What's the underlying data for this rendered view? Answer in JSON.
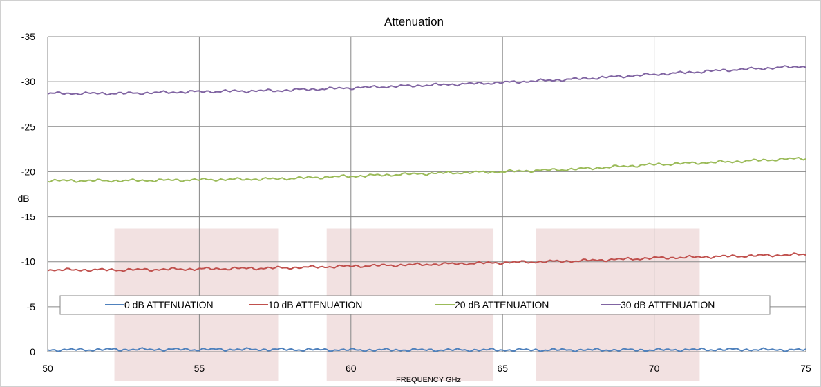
{
  "chart_data": {
    "type": "line",
    "title": "Attenuation",
    "xlabel": "FREQUENCY GHz",
    "ylabel": "dB",
    "xlim": [
      50,
      75
    ],
    "ylim": [
      0,
      -35
    ],
    "y_inverted": true,
    "x_ticks": [
      50,
      55,
      60,
      65,
      70,
      75
    ],
    "y_ticks": [
      0,
      -5,
      -10,
      -15,
      -20,
      -25,
      -30,
      -35
    ],
    "grid": true,
    "legend_placement": "bottom",
    "highlight_bands": [
      {
        "x": [
          52.2,
          57.6
        ],
        "y": [
          0,
          -13.7
        ],
        "color": "#f2e1e1"
      },
      {
        "x": [
          59.2,
          64.7
        ],
        "y": [
          0,
          -13.7
        ],
        "color": "#f2e1e1"
      },
      {
        "x": [
          66.1,
          71.5
        ],
        "y": [
          0,
          -13.7
        ],
        "color": "#f2e1e1"
      }
    ],
    "series": [
      {
        "name": "0 dB ATTENUATION",
        "color": "#4f81bd",
        "x": [
          50,
          52.5,
          55,
          57.5,
          60,
          62.5,
          65,
          67.5,
          70,
          72.5,
          75
        ],
        "values": [
          -0.2,
          -0.25,
          -0.25,
          -0.25,
          -0.2,
          -0.2,
          -0.2,
          -0.2,
          -0.2,
          -0.25,
          -0.2
        ]
      },
      {
        "name": "10 dB ATTENUATION",
        "color": "#c0504d",
        "x": [
          50,
          52.5,
          55,
          57.5,
          60,
          62.5,
          65,
          67.5,
          70,
          72.5,
          75
        ],
        "values": [
          -9.1,
          -9.1,
          -9.2,
          -9.3,
          -9.5,
          -9.7,
          -9.9,
          -10.1,
          -10.4,
          -10.6,
          -10.8
        ]
      },
      {
        "name": "20 dB ATTENUATION",
        "color": "#9bbb59",
        "x": [
          50,
          52.5,
          55,
          57.5,
          60,
          62.5,
          65,
          67.5,
          70,
          72.5,
          75
        ],
        "values": [
          -19.0,
          -19.0,
          -19.1,
          -19.2,
          -19.5,
          -19.8,
          -20.0,
          -20.3,
          -20.8,
          -21.1,
          -21.5
        ]
      },
      {
        "name": "30 dB ATTENUATION",
        "color": "#8064a2",
        "x": [
          50,
          52.5,
          55,
          57.5,
          60,
          62.5,
          65,
          67.5,
          70,
          72.5,
          75
        ],
        "values": [
          -28.7,
          -28.7,
          -28.9,
          -29.0,
          -29.3,
          -29.6,
          -29.9,
          -30.3,
          -30.8,
          -31.3,
          -31.7
        ]
      }
    ]
  }
}
